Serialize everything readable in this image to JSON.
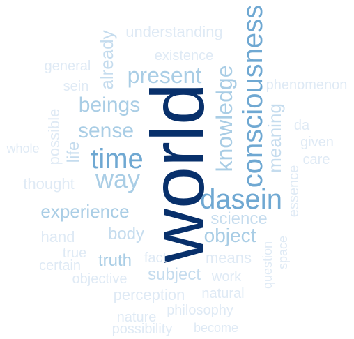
{
  "palette": {
    "darkest": "#08306b",
    "dark": "#2f75b5",
    "medium": "#6fa8d2",
    "light": "#a9cde5",
    "lighter": "#c5dcee",
    "lightest": "#dfeaf5"
  },
  "words": [
    {
      "id": "world",
      "text": "world"
    },
    {
      "id": "consciousness",
      "text": "consciousness"
    },
    {
      "id": "dasein",
      "text": "dasein"
    },
    {
      "id": "time",
      "text": "time"
    },
    {
      "id": "way",
      "text": "way"
    },
    {
      "id": "knowledge",
      "text": "knowledge"
    },
    {
      "id": "present",
      "text": "present"
    },
    {
      "id": "beings",
      "text": "beings"
    },
    {
      "id": "sense",
      "text": "sense"
    },
    {
      "id": "experience",
      "text": "experience"
    },
    {
      "id": "object",
      "text": "object"
    },
    {
      "id": "meaning",
      "text": "meaning"
    },
    {
      "id": "science",
      "text": "science"
    },
    {
      "id": "body",
      "text": "body"
    },
    {
      "id": "truth",
      "text": "truth"
    },
    {
      "id": "subject",
      "text": "subject"
    },
    {
      "id": "understanding",
      "text": "understanding"
    },
    {
      "id": "already",
      "text": "already"
    },
    {
      "id": "existence",
      "text": "existence"
    },
    {
      "id": "phenomenon",
      "text": "phenomenon"
    },
    {
      "id": "general",
      "text": "general"
    },
    {
      "id": "sein",
      "text": "sein"
    },
    {
      "id": "possible",
      "text": "possible"
    },
    {
      "id": "life",
      "text": "life"
    },
    {
      "id": "whole",
      "text": "whole"
    },
    {
      "id": "thought",
      "text": "thought"
    },
    {
      "id": "hand",
      "text": "hand"
    },
    {
      "id": "true",
      "text": "true"
    },
    {
      "id": "certain",
      "text": "certain"
    },
    {
      "id": "objective",
      "text": "objective"
    },
    {
      "id": "fact",
      "text": "fact"
    },
    {
      "id": "means",
      "text": "means"
    },
    {
      "id": "work",
      "text": "work"
    },
    {
      "id": "perception",
      "text": "perception"
    },
    {
      "id": "natural",
      "text": "natural"
    },
    {
      "id": "nature",
      "text": "nature"
    },
    {
      "id": "philosophy",
      "text": "philosophy"
    },
    {
      "id": "possibility",
      "text": "possibility"
    },
    {
      "id": "become",
      "text": "become"
    },
    {
      "id": "da",
      "text": "da"
    },
    {
      "id": "given",
      "text": "given"
    },
    {
      "id": "care",
      "text": "care"
    },
    {
      "id": "essence",
      "text": "essence"
    },
    {
      "id": "question",
      "text": "question"
    },
    {
      "id": "space",
      "text": "space"
    }
  ]
}
